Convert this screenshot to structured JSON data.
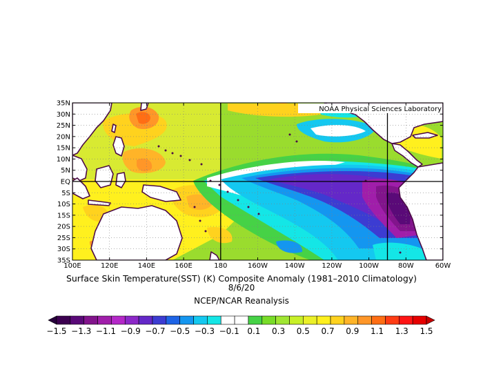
{
  "map": {
    "credit": "NOAA Physical Sciences Laboratory",
    "lat_labels": [
      "35N",
      "30N",
      "25N",
      "20N",
      "15N",
      "10N",
      "5N",
      "EQ",
      "5S",
      "10S",
      "15S",
      "20S",
      "25S",
      "30S",
      "35S"
    ],
    "lon_labels": [
      "100E",
      "120E",
      "140E",
      "160E",
      "180",
      "160W",
      "140W",
      "120W",
      "100W",
      "80W",
      "60W"
    ],
    "title": "Surface Skin Temperature(SST) (K) Composite Anomaly (1981–2010 Climatology)",
    "date": "8/6/20",
    "source": "NCEP/NCAR Reanalysis",
    "extent": {
      "lon_min": 100,
      "lon_max": 300,
      "lat_min": -35,
      "lat_max": 35
    },
    "reference_lines": {
      "lat": [
        0
      ],
      "lon": [
        180,
        270
      ]
    }
  },
  "colorbar": {
    "labels": [
      "−1.5",
      "−1.3",
      "−1.1",
      "−0.9",
      "−0.7",
      "−0.5",
      "−0.3",
      "−0.1",
      "0.1",
      "0.3",
      "0.5",
      "0.7",
      "0.9",
      "1.1",
      "1.3",
      "1.5"
    ],
    "colors": [
      "#3c0050",
      "#5a0a78",
      "#82148c",
      "#a01eaa",
      "#b428c8",
      "#8c28c8",
      "#6428c8",
      "#3c3cd2",
      "#1e64e6",
      "#1496f0",
      "#14c8f0",
      "#14e6e6",
      "#ffffff",
      "#ffffff",
      "#46d246",
      "#78dc28",
      "#a0e632",
      "#c8f028",
      "#ebf028",
      "#fff01e",
      "#ffd21e",
      "#ffb428",
      "#ff9628",
      "#ff6e14",
      "#ff3c14",
      "#ff1414",
      "#e60000"
    ],
    "left_arrow_color": "#28003c",
    "right_arrow_color": "#c80000"
  }
}
